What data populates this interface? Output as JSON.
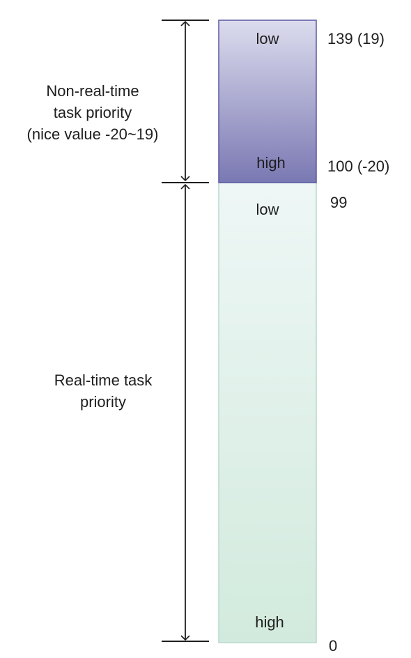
{
  "regions": {
    "non_real_time": {
      "range_label_lines": [
        "Non-real-time",
        "task priority",
        "(nice value -20~19)"
      ],
      "top_text": "low",
      "bottom_text": "high",
      "top_value": "139 (19)",
      "bottom_value": "100 (-20)",
      "fill_top": "#dcdcee",
      "fill_bottom": "#7a78b2",
      "border": "#5a58a0"
    },
    "real_time": {
      "range_label_lines": [
        "Real-time task",
        "priority"
      ],
      "top_text": "low",
      "bottom_text": "high",
      "top_value": "99",
      "bottom_value": "0",
      "fill_top": "#eef7f6",
      "fill_bottom": "#d2eadd",
      "border": "#b9d9cc"
    }
  }
}
